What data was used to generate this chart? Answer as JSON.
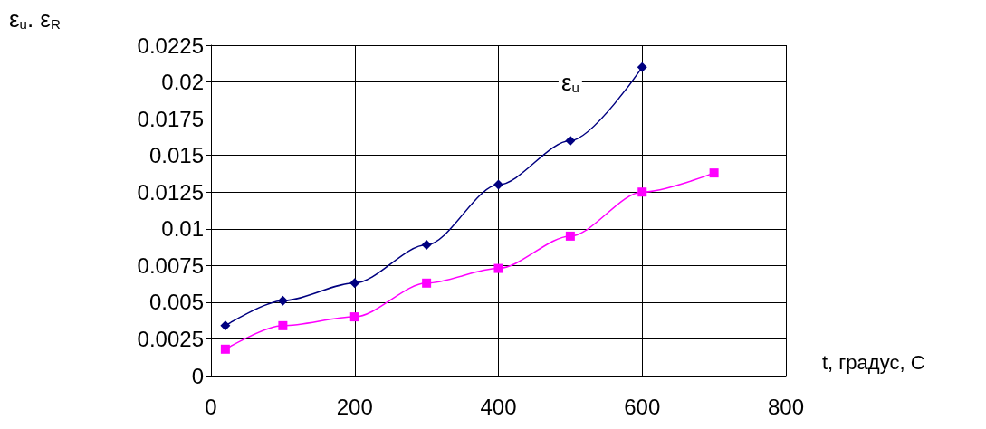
{
  "chart_data": {
    "type": "line",
    "ylabel": "ε$_{u}$. ε$_{R}$",
    "xlabel": "t, градус, С",
    "series": [
      {
        "name": "ε$_{u}$",
        "color": "#000080",
        "marker": "diamond",
        "x": [
          20,
          100,
          200,
          300,
          400,
          500,
          600
        ],
        "values": [
          0.0034,
          0.0051,
          0.0063,
          0.0089,
          0.013,
          0.016,
          0.021
        ]
      },
      {
        "color": "#ff00ff",
        "marker": "square",
        "x": [
          20,
          100,
          200,
          300,
          400,
          500,
          600,
          700
        ],
        "values": [
          0.0018,
          0.0034,
          0.004,
          0.0063,
          0.0073,
          0.0095,
          0.0125,
          0.0138
        ]
      }
    ],
    "xlim": [
      0,
      800
    ],
    "xticks": [
      0,
      200,
      400,
      600,
      800
    ],
    "ylim": [
      0,
      0.0225
    ],
    "yticks": [
      0,
      0.0025,
      0.005,
      0.0075,
      0.01,
      0.0125,
      0.015,
      0.0175,
      0.02,
      0.0225
    ],
    "grid": true,
    "line_style": "solid"
  }
}
